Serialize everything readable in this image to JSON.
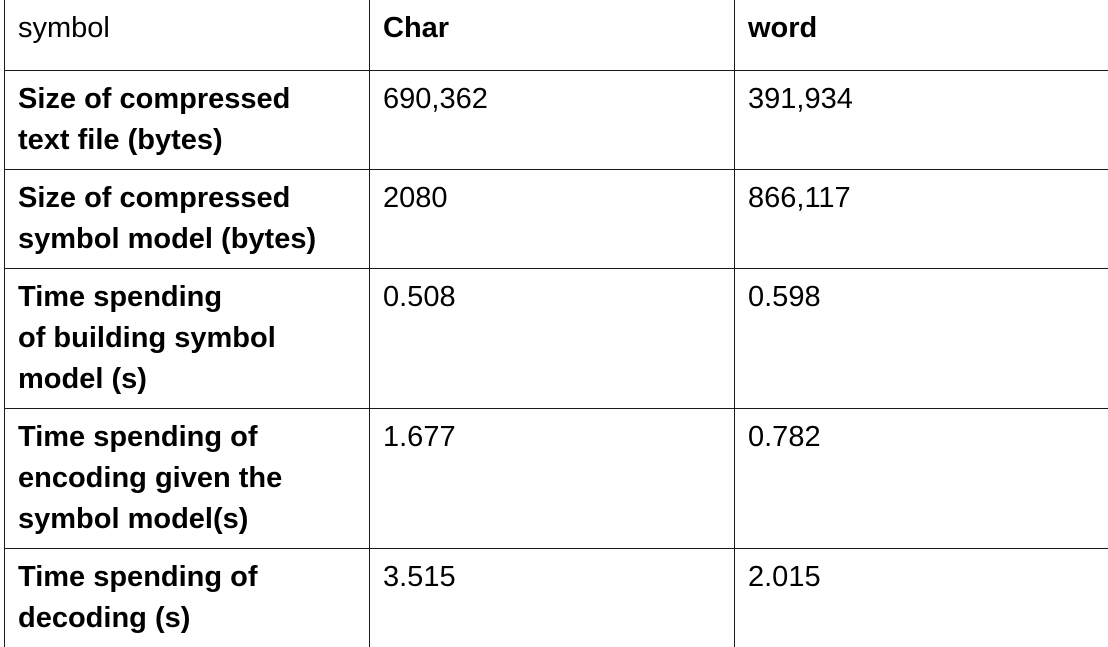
{
  "table": {
    "header": {
      "label": "symbol",
      "char": "Char",
      "word": "word"
    },
    "rows": [
      {
        "label": "Size of compressed\ntext file (bytes)",
        "char": "690,362",
        "word": "391,934"
      },
      {
        "label": "Size of compressed\nsymbol model (bytes)",
        "char": "2080",
        "word": "866,117"
      },
      {
        "label": "Time spending\nof building symbol\nmodel (s)",
        "char": "0.508",
        "word": "0.598"
      },
      {
        "label": "Time spending of\nencoding given the\nsymbol model(s)",
        "char": "1.677",
        "word": "0.782"
      },
      {
        "label": "Time spending of\ndecoding (s)",
        "char": "3.515",
        "word": "2.015"
      }
    ]
  }
}
